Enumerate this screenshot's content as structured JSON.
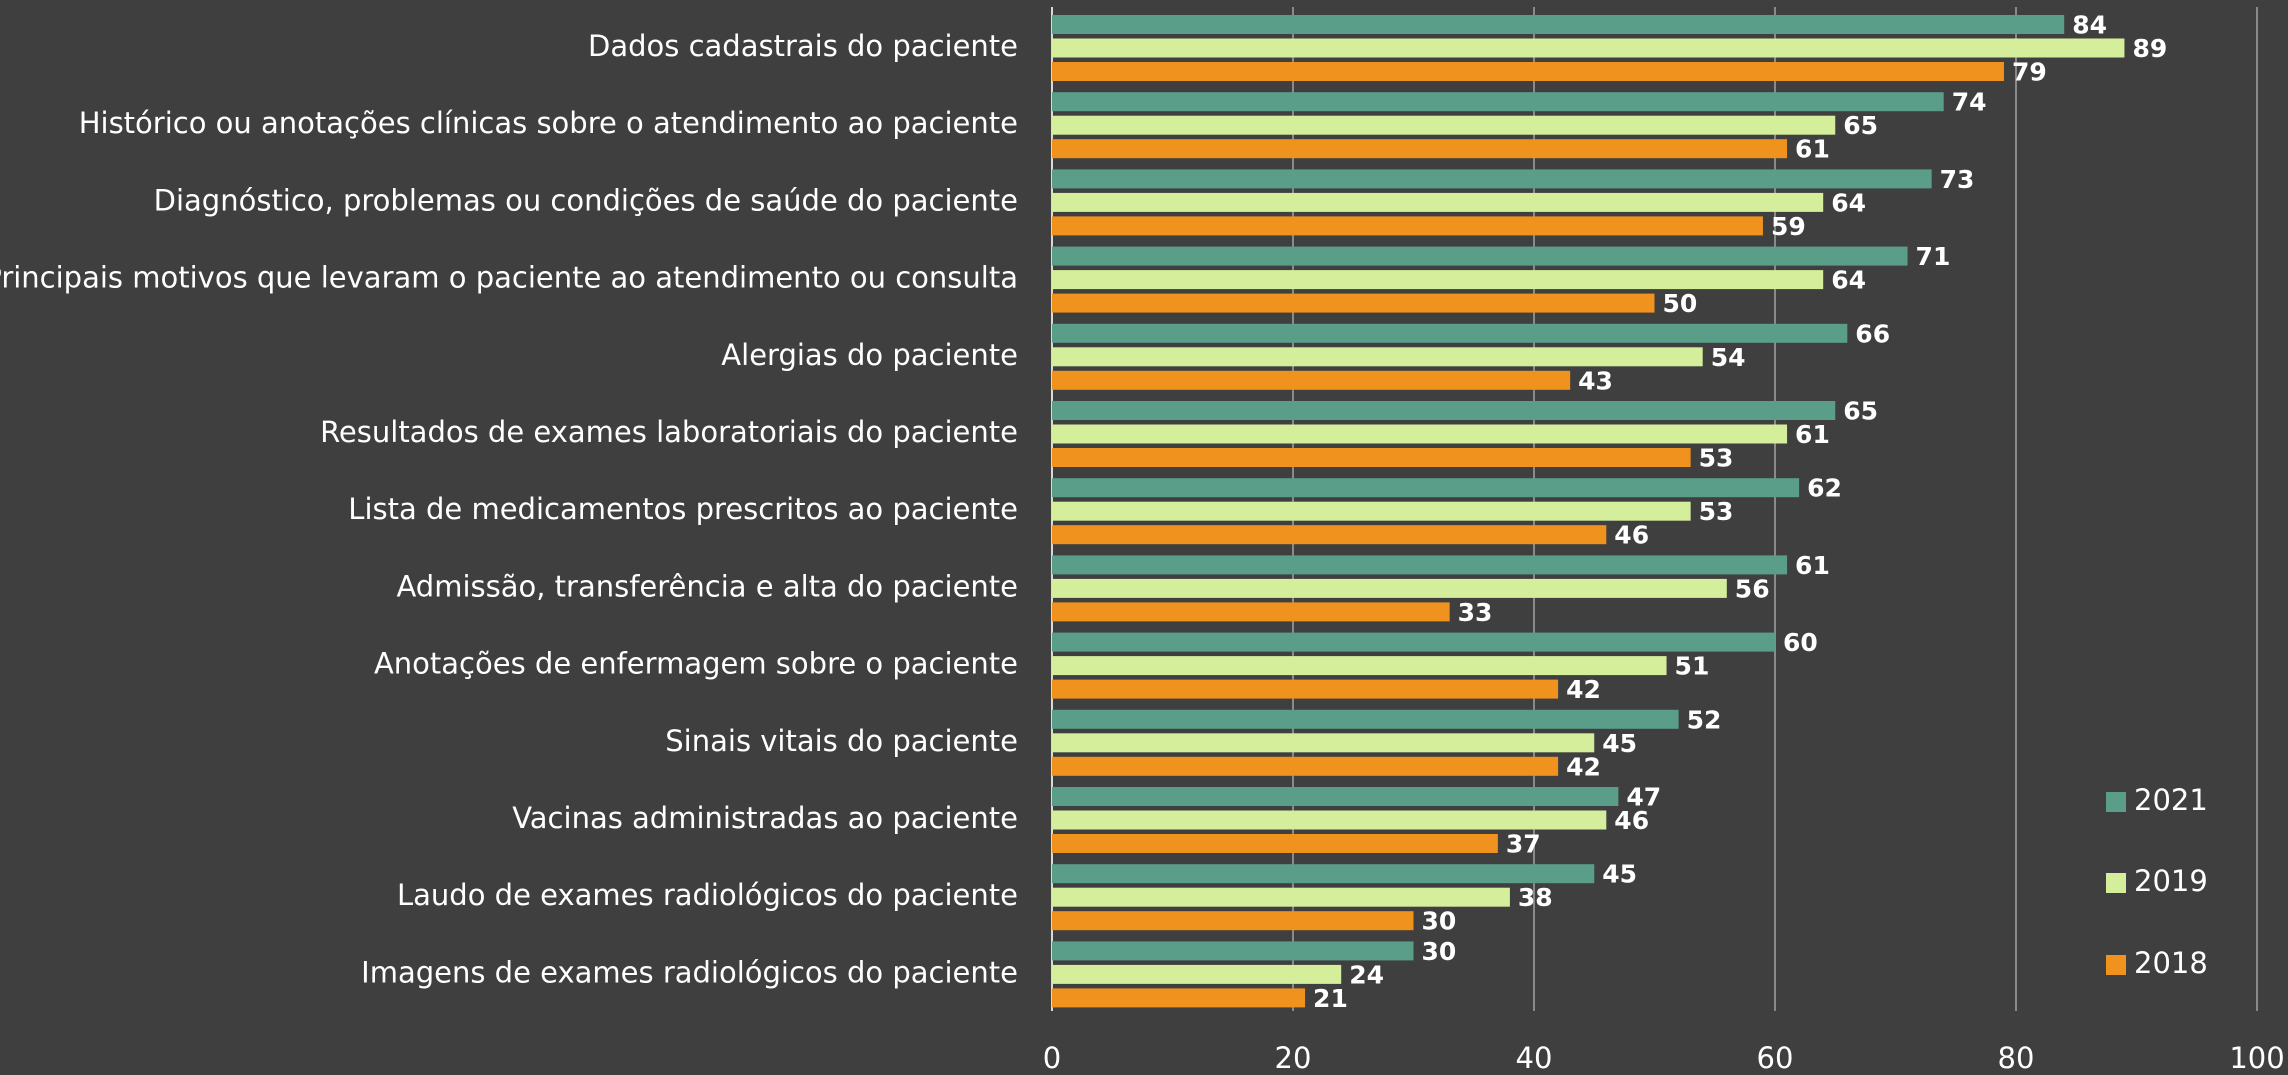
{
  "chart_data": {
    "type": "hbar",
    "categories": [
      "Dados cadastrais do paciente",
      "Histórico ou anotações clínicas sobre o atendimento ao paciente",
      "Diagnóstico, problemas ou condições de saúde do paciente",
      "Principais motivos que levaram o paciente ao atendimento ou consulta",
      "Alergias do paciente",
      "Resultados de exames laboratoriais do paciente",
      "Lista de medicamentos prescritos ao paciente",
      "Admissão, transferência e alta do paciente",
      "Anotações de enfermagem sobre o paciente",
      "Sinais vitais do paciente",
      "Vacinas administradas ao paciente",
      "Laudo de exames radiológicos do paciente",
      "Imagens de exames radiológicos do paciente"
    ],
    "series": [
      {
        "name": "2021",
        "color": "#5a9e8a",
        "values": [
          84,
          74,
          73,
          71,
          66,
          65,
          62,
          61,
          60,
          52,
          47,
          45,
          30
        ]
      },
      {
        "name": "2019",
        "color": "#d4ee9c",
        "values": [
          89,
          65,
          64,
          64,
          54,
          61,
          53,
          56,
          51,
          45,
          46,
          38,
          24
        ]
      },
      {
        "name": "2018",
        "color": "#f0921e",
        "values": [
          79,
          61,
          59,
          50,
          43,
          53,
          46,
          33,
          42,
          42,
          37,
          30,
          21
        ]
      }
    ],
    "xlim": [
      0,
      100
    ],
    "xticks": [
      0,
      20,
      40,
      60,
      80,
      100
    ],
    "grid": true,
    "legend": "right"
  }
}
